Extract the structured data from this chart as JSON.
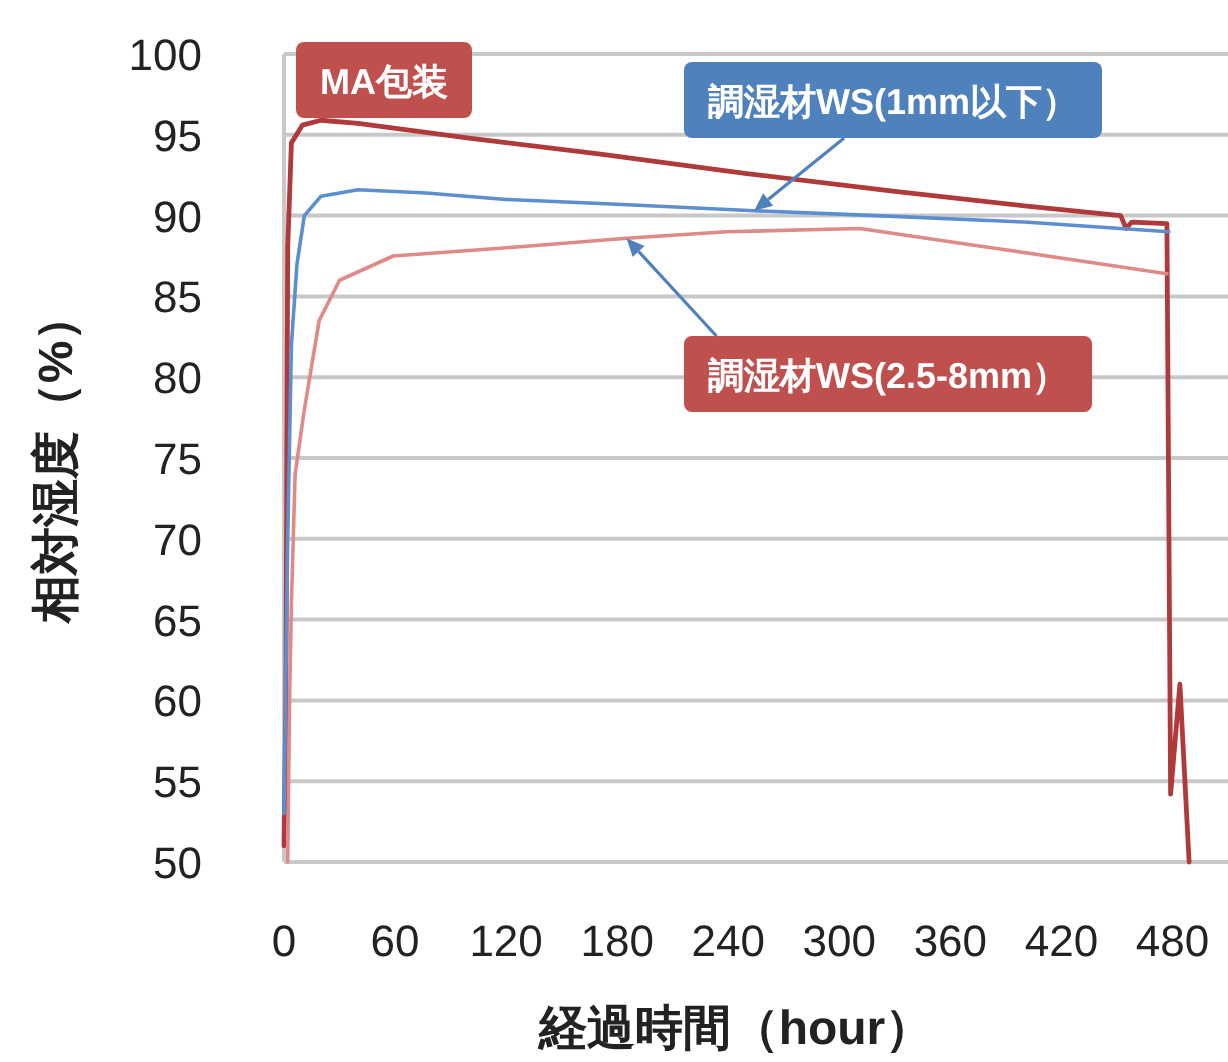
{
  "chart_data": {
    "type": "line",
    "xlabel": "経過時間（hour）",
    "ylabel": "相対湿度（%）",
    "xlim": [
      0,
      510
    ],
    "ylim": [
      50,
      100
    ],
    "xticks": [
      0,
      60,
      120,
      180,
      240,
      300,
      360,
      420,
      480
    ],
    "yticks": [
      50,
      55,
      60,
      65,
      70,
      75,
      80,
      85,
      90,
      95,
      100
    ],
    "grid": "y",
    "legend": false,
    "marker": "none",
    "line_style": "solid",
    "series": [
      {
        "name": "MA包装",
        "color": "#b03a3a",
        "x": [
          0,
          1,
          2,
          4,
          10,
          20,
          40,
          100,
          171,
          250,
          330,
          400,
          452,
          455,
          458,
          477,
          479,
          484,
          489
        ],
        "values": [
          51,
          60,
          88,
          94.5,
          95.6,
          95.9,
          95.7,
          94.8,
          93.8,
          92.6,
          91.5,
          90.6,
          90,
          89.2,
          89.6,
          89.5,
          54.2,
          61,
          50
        ]
      },
      {
        "name": "調湿材WS(1mm以下）",
        "color": "#5b8fd0",
        "x": [
          0,
          2,
          4,
          7,
          11,
          20,
          40,
          77,
          120,
          180,
          254,
          320,
          400,
          452,
          478
        ],
        "values": [
          53,
          70,
          82,
          87,
          90,
          91.2,
          91.6,
          91.4,
          91,
          90.7,
          90.3,
          90,
          89.6,
          89.2,
          89
        ]
      },
      {
        "name": "調湿材WS(2.5-8mm）",
        "color": "#e08a88",
        "x": [
          2,
          3,
          4,
          6,
          11,
          19,
          30,
          59,
          131,
          185,
          239,
          311,
          383,
          477
        ],
        "values": [
          50,
          60,
          66,
          74,
          78,
          83.5,
          86,
          87.5,
          88.1,
          88.6,
          89,
          89.2,
          88,
          86.4
        ]
      }
    ]
  }
}
